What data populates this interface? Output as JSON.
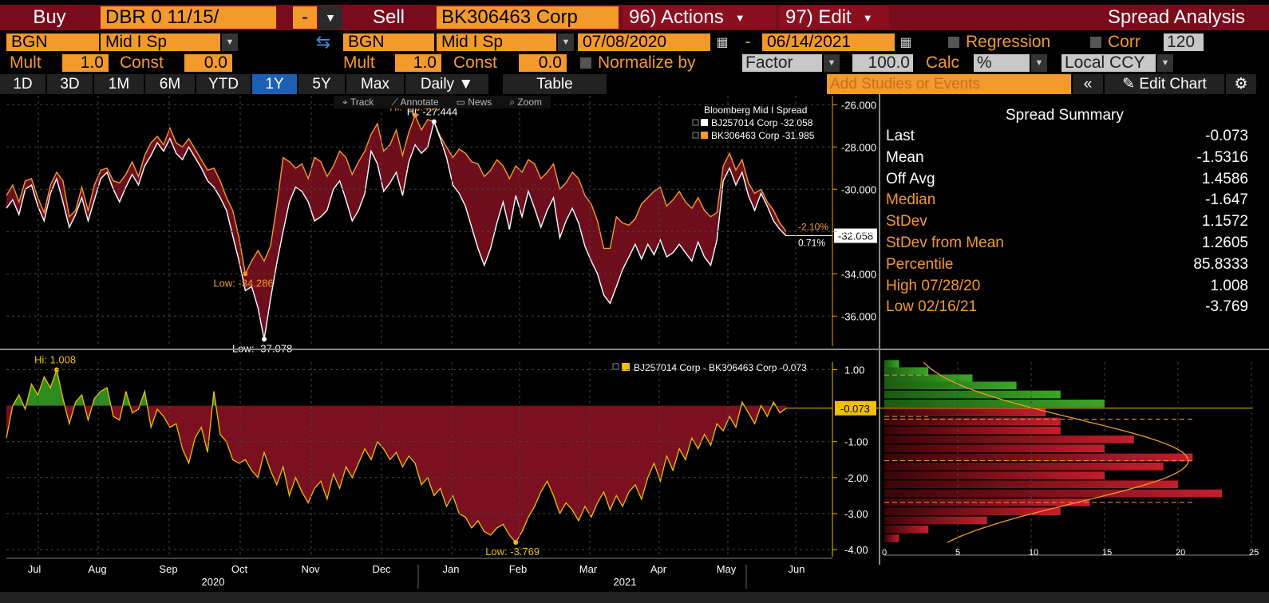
{
  "toolbar": {
    "buy_label": "Buy",
    "buy_security": "DBR 0 11/15/",
    "buy_side_value": "-",
    "sell_label": "Sell",
    "sell_security": "BK306463 Corp",
    "actions_label": "96) Actions",
    "edit_label": "97) Edit",
    "app_title": "Spread Analysis"
  },
  "row2": {
    "buy_source": "BGN",
    "buy_pricing": "Mid I Sp",
    "sell_source": "BGN",
    "sell_pricing": "Mid I Sp",
    "start_date": "07/08/2020",
    "date_sep": "-",
    "end_date": "06/14/2021",
    "regression_label": "Regression",
    "corr_label": "Corr",
    "corr_value": "120"
  },
  "row3": {
    "mult_label": "Mult",
    "buy_mult": "1.0",
    "const_label": "Const",
    "buy_const": "0.0",
    "sell_mult": "1.0",
    "sell_const": "0.0",
    "normalize_label": "Normalize by",
    "normalize_value": "Factor",
    "normalize_amount": "100.0",
    "calc_label": "Calc",
    "calc_value": "%",
    "ccy_value": "Local CCY"
  },
  "tabs": [
    "1D",
    "3D",
    "1M",
    "6M",
    "YTD",
    "1Y",
    "5Y",
    "Max"
  ],
  "active_tab": "1Y",
  "frequency": "Daily ▼",
  "table_label": "Table",
  "studies_placeholder": "Add Studies or Events",
  "edit_chart_label": "Edit Chart",
  "chart_toolbar": [
    "Track",
    "Annotate",
    "News",
    "Zoom"
  ],
  "summary": {
    "title": "Spread Summary",
    "rows": [
      {
        "k": "Last",
        "v": "-0.073",
        "c": "white"
      },
      {
        "k": "Mean",
        "v": "-1.5316",
        "c": "white"
      },
      {
        "k": "Off Avg",
        "v": "1.4586",
        "c": "white"
      },
      {
        "k": "Median",
        "v": "-1.647",
        "c": "orange"
      },
      {
        "k": "StDev",
        "v": "1.1572",
        "c": "orange"
      },
      {
        "k": "StDev from Mean",
        "v": "1.2605",
        "c": "orange"
      },
      {
        "k": "Percentile",
        "v": "85.8333",
        "c": "orange"
      },
      {
        "k": "High 07/28/20",
        "v": "1.008",
        "c": "orange"
      },
      {
        "k": "Low 02/16/21",
        "v": "-3.769",
        "c": "orange"
      }
    ]
  },
  "colors": {
    "orange": "#f49a2a",
    "red_fill": "#7a1020",
    "green_fill": "#2e8b1e",
    "series_white": "#ffffff",
    "spread_line": "#f0c000"
  },
  "chart_data": [
    {
      "type": "line",
      "legend_title": "Bloomberg Mid I Spread",
      "series": [
        {
          "name": "BJ257014 Corp",
          "last": "-32.058"
        },
        {
          "name": "BK306463 Corp",
          "last": "-31.985"
        }
      ],
      "ylim": [
        -37.5,
        -25.5
      ],
      "yticks": [
        "-26.000",
        "-28.000",
        "-30.000",
        "-32.000",
        "-34.000",
        "-36.000"
      ],
      "annotations": {
        "hi_white": "Hi: -27.444",
        "hi_orange": "Hi: -26.433",
        "low_orange": "Low: -34.286",
        "low_white": "Low: -37.078",
        "last_tag": "-32.058",
        "pct_a": "-2.10%",
        "pct_b": "0.71%"
      },
      "white_values": [
        -30.9,
        -30.5,
        -31.2,
        -30.0,
        -29.8,
        -30.8,
        -31.5,
        -30.2,
        -29.5,
        -30.6,
        -31.8,
        -31.2,
        -30.4,
        -31.5,
        -30.5,
        -29.5,
        -29.2,
        -30.0,
        -30.6,
        -29.9,
        -29.3,
        -29.8,
        -28.9,
        -28.4,
        -27.8,
        -28.2,
        -27.6,
        -28.3,
        -28.6,
        -28.0,
        -28.5,
        -29.0,
        -29.6,
        -29.9,
        -30.4,
        -31.0,
        -32.2,
        -33.4,
        -34.8,
        -34.6,
        -35.6,
        -37.1,
        -35.2,
        -33.5,
        -32.0,
        -30.6,
        -29.9,
        -30.1,
        -30.6,
        -31.5,
        -31.3,
        -31.0,
        -30.0,
        -29.6,
        -30.5,
        -31.5,
        -31.0,
        -30.2,
        -28.2,
        -28.8,
        -30.1,
        -29.7,
        -29.2,
        -30.3,
        -28.7,
        -27.9,
        -28.3,
        -28.0,
        -26.8,
        -27.6,
        -28.5,
        -29.8,
        -30.2,
        -30.8,
        -31.8,
        -32.8,
        -33.6,
        -32.8,
        -31.6,
        -30.6,
        -31.9,
        -30.3,
        -31.3,
        -30.1,
        -30.9,
        -31.8,
        -31.0,
        -30.4,
        -32.3,
        -31.5,
        -30.9,
        -31.6,
        -32.7,
        -33.4,
        -34.0,
        -35.0,
        -35.4,
        -34.6,
        -33.8,
        -33.2,
        -32.6,
        -33.3,
        -32.6,
        -33.1,
        -32.4,
        -33.2,
        -33.0,
        -32.6,
        -33.0,
        -33.4,
        -32.5,
        -33.2,
        -33.6,
        -32.4,
        -29.6,
        -29.0,
        -29.8,
        -29.2,
        -30.3,
        -31.0,
        -30.2,
        -30.8,
        -31.5,
        -31.9,
        -32.2
      ],
      "orange_values": [
        -30.3,
        -29.8,
        -30.6,
        -29.6,
        -29.5,
        -30.4,
        -31.1,
        -29.8,
        -29.2,
        -29.6,
        -31.3,
        -31.0,
        -29.9,
        -31.0,
        -29.8,
        -29.1,
        -29.0,
        -29.6,
        -29.7,
        -29.3,
        -28.7,
        -29.4,
        -28.4,
        -27.8,
        -27.5,
        -27.9,
        -27.1,
        -27.8,
        -28.0,
        -27.6,
        -28.1,
        -28.6,
        -29.1,
        -29.0,
        -29.6,
        -30.4,
        -31.0,
        -32.3,
        -34.0,
        -33.4,
        -32.9,
        -33.4,
        -32.7,
        -30.8,
        -28.5,
        -28.7,
        -29.0,
        -28.8,
        -29.5,
        -28.5,
        -28.7,
        -29.4,
        -28.9,
        -28.2,
        -28.5,
        -29.3,
        -28.7,
        -28.2,
        -27.4,
        -26.9,
        -28.2,
        -27.9,
        -27.2,
        -28.4,
        -27.3,
        -26.5,
        -27.2,
        -26.7,
        -26.8,
        -27.5,
        -28.0,
        -28.5,
        -28.1,
        -28.3,
        -28.7,
        -28.8,
        -29.4,
        -29.1,
        -28.6,
        -28.9,
        -29.5,
        -28.9,
        -29.2,
        -28.6,
        -28.8,
        -29.5,
        -29.2,
        -28.8,
        -30.0,
        -29.7,
        -29.2,
        -29.5,
        -30.3,
        -30.7,
        -31.5,
        -32.8,
        -32.8,
        -31.3,
        -31.6,
        -31.7,
        -31.4,
        -30.7,
        -30.4,
        -30.1,
        -29.9,
        -30.8,
        -30.5,
        -30.1,
        -30.6,
        -30.9,
        -30.4,
        -31.0,
        -31.3,
        -31.1,
        -28.9,
        -28.3,
        -29.1,
        -28.6,
        -29.7,
        -30.2,
        -30.0,
        -30.6,
        -31.0,
        -31.6,
        -32.0
      ]
    },
    {
      "type": "area",
      "legend": "BJ257014 Corp - BK306463 Corp -0.073",
      "ylim": [
        -4.2,
        1.3
      ],
      "yticks": [
        "1.00",
        "-1.00",
        "-2.00",
        "-3.00",
        "-4.00"
      ],
      "annotations": {
        "hi": "Hi: 1.008",
        "low": "Low: -3.769",
        "last_tag": "-0.073"
      },
      "values": [
        -0.9,
        0.0,
        0.3,
        -0.1,
        0.6,
        0.3,
        0.8,
        0.5,
        1.0,
        0.2,
        -0.5,
        0.1,
        0.3,
        -0.4,
        0.2,
        0.4,
        0.5,
        -0.3,
        -0.4,
        0.4,
        -0.2,
        -0.1,
        0.4,
        -0.6,
        -0.1,
        -0.3,
        -0.6,
        -0.5,
        -1.2,
        -1.6,
        -0.9,
        -0.6,
        -1.3,
        0.4,
        -0.8,
        -1.0,
        -1.5,
        -1.6,
        -1.5,
        -1.8,
        -2.0,
        -1.3,
        -1.8,
        -2.2,
        -1.7,
        -2.5,
        -2.0,
        -2.4,
        -2.7,
        -2.3,
        -2.1,
        -2.6,
        -1.9,
        -2.3,
        -1.7,
        -2.0,
        -1.6,
        -1.2,
        -1.5,
        -1.0,
        -1.2,
        -1.5,
        -1.3,
        -1.7,
        -1.4,
        -1.6,
        -2.2,
        -2.0,
        -2.5,
        -2.3,
        -2.8,
        -2.5,
        -3.0,
        -3.1,
        -3.4,
        -3.2,
        -3.5,
        -3.6,
        -3.4,
        -3.3,
        -3.6,
        -3.8,
        -3.5,
        -3.1,
        -2.8,
        -2.4,
        -2.1,
        -2.5,
        -3.0,
        -2.7,
        -2.9,
        -3.2,
        -2.8,
        -3.1,
        -2.7,
        -2.4,
        -2.9,
        -2.5,
        -2.8,
        -2.4,
        -2.2,
        -2.6,
        -2.0,
        -1.6,
        -2.1,
        -1.4,
        -1.8,
        -1.2,
        -1.5,
        -0.9,
        -1.2,
        -0.8,
        -1.1,
        -0.5,
        -0.7,
        -0.3,
        -0.6,
        0.1,
        -0.2,
        -0.5,
        0.0,
        -0.3,
        0.1,
        -0.2,
        -0.07
      ]
    },
    {
      "type": "bar",
      "orientation": "horizontal",
      "title": "",
      "xticks": [
        "0",
        "5",
        "10",
        "15",
        "20",
        "25"
      ],
      "xlim": [
        0,
        25
      ],
      "ylim": [
        -4.2,
        1.3
      ],
      "bins": [
        1.15,
        0.95,
        0.75,
        0.55,
        0.3,
        0.05,
        -0.2,
        -0.45,
        -0.7,
        -0.95,
        -1.2,
        -1.45,
        -1.7,
        -1.95,
        -2.2,
        -2.45,
        -2.7,
        -2.95,
        -3.2,
        -3.45,
        -3.7
      ],
      "counts": [
        1,
        3,
        6,
        9,
        12,
        15,
        11,
        12,
        12,
        17,
        15,
        21,
        19,
        15,
        20,
        23,
        14,
        12,
        7,
        3,
        1
      ]
    }
  ],
  "x_axis": {
    "months": [
      "Jul",
      "Aug",
      "Sep",
      "Oct",
      "Nov",
      "Dec",
      "Jan",
      "Feb",
      "Mar",
      "Apr",
      "May",
      "Jun"
    ],
    "years": [
      "2020",
      "2021"
    ]
  }
}
